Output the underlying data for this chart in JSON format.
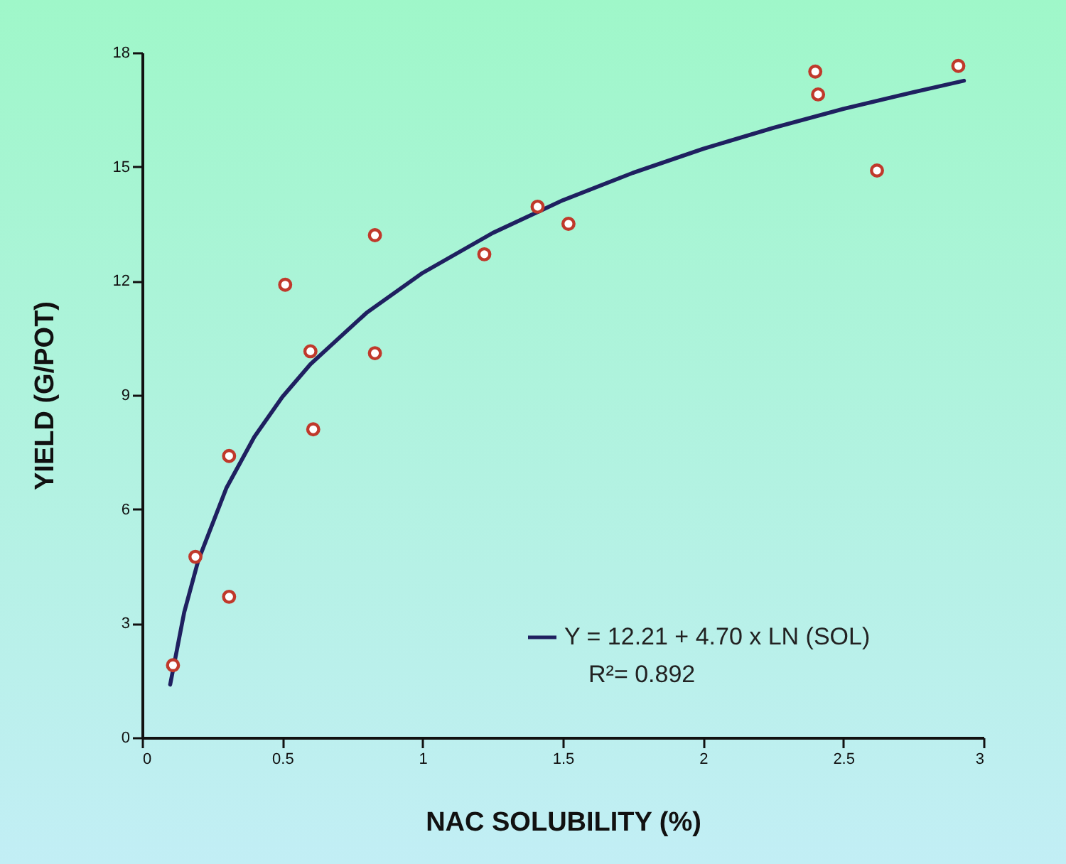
{
  "chart_data": {
    "type": "scatter",
    "xlabel": "NAC SOLUBILITY (%)",
    "ylabel": "YIELD (G/POT)",
    "xlim": [
      0,
      3
    ],
    "xticks": [
      0,
      0.5,
      1,
      1.5,
      2,
      2.5,
      3
    ],
    "ylim": [
      0,
      18
    ],
    "yticks": [
      0,
      3,
      6,
      9,
      12,
      15,
      18
    ],
    "grid": false,
    "legend": "bottom right",
    "series": [
      {
        "marker": "circle",
        "color": "#c0392b",
        "x": [
          0.11,
          0.19,
          0.31,
          0.31,
          0.51,
          0.6,
          0.61,
          0.83,
          0.83,
          1.22,
          1.41,
          1.52,
          2.4,
          2.41,
          2.62,
          2.91
        ],
        "values": [
          1.9,
          4.75,
          7.4,
          3.7,
          11.9,
          10.15,
          8.1,
          13.2,
          10.1,
          12.7,
          13.95,
          13.5,
          17.5,
          16.9,
          14.9,
          17.65
        ]
      },
      {
        "type": "line",
        "name": "Y = 12.21 + 4.70 x LN (SOL)",
        "color": "#1f2060",
        "line_style": "solid",
        "x": [
          0.1,
          0.15,
          0.2,
          0.3,
          0.4,
          0.5,
          0.6,
          0.8,
          1,
          1.25,
          1.5,
          1.75,
          2,
          2.25,
          2.5,
          2.75,
          2.93
        ],
        "values": [
          1.39,
          3.29,
          4.65,
          6.55,
          7.9,
          8.95,
          9.81,
          11.16,
          12.21,
          13.26,
          14.12,
          14.84,
          15.47,
          16.02,
          16.52,
          16.96,
          17.26
        ]
      }
    ],
    "annotations": [
      "R²= 0.892"
    ]
  }
}
